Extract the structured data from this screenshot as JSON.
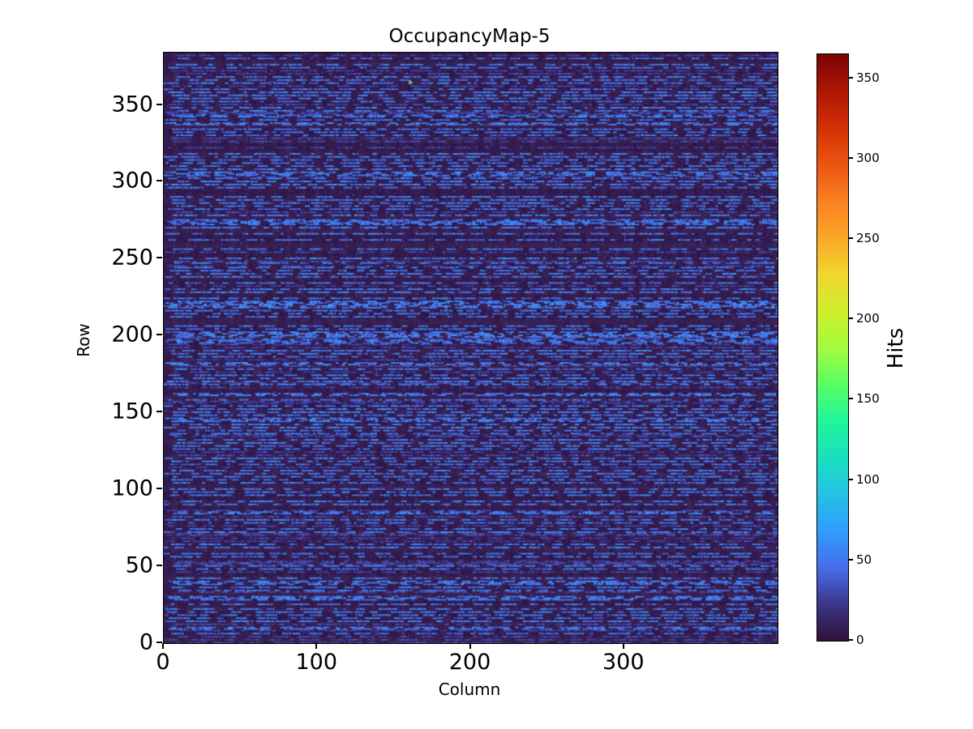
{
  "figure": {
    "background_color": "#ffffff",
    "text_color": "#000000"
  },
  "chart_data": {
    "type": "heatmap",
    "title": "OccupancyMap-5",
    "xlabel": "Column",
    "ylabel": "Row",
    "colorbar_label": "Hits",
    "x_range": [
      0,
      400
    ],
    "y_range": [
      0,
      384
    ],
    "value_range": [
      0,
      365
    ],
    "x_ticks": [
      0,
      100,
      200,
      300
    ],
    "y_ticks": [
      0,
      50,
      100,
      150,
      200,
      250,
      300,
      350
    ],
    "colorbar_ticks": [
      0,
      50,
      100,
      150,
      200,
      250,
      300,
      350
    ],
    "grid": false,
    "legend": null,
    "colormap": {
      "name": "turbo",
      "stops": [
        {
          "t": 0.0,
          "rgb": [
            48,
            18,
            59
          ]
        },
        {
          "t": 0.0625,
          "rgb": [
            60,
            54,
            138
          ]
        },
        {
          "t": 0.125,
          "rgb": [
            70,
            110,
            235
          ]
        },
        {
          "t": 0.1875,
          "rgb": [
            46,
            158,
            253
          ]
        },
        {
          "t": 0.25,
          "rgb": [
            35,
            194,
            228
          ]
        },
        {
          "t": 0.3125,
          "rgb": [
            26,
            224,
            190
          ]
        },
        {
          "t": 0.375,
          "rgb": [
            32,
            246,
            154
          ]
        },
        {
          "t": 0.4375,
          "rgb": [
            89,
            255,
            100
          ]
        },
        {
          "t": 0.5,
          "rgb": [
            164,
            252,
            60
          ]
        },
        {
          "t": 0.5625,
          "rgb": [
            207,
            238,
            44
          ]
        },
        {
          "t": 0.625,
          "rgb": [
            242,
            213,
            47
          ]
        },
        {
          "t": 0.6875,
          "rgb": [
            250,
            167,
            38
          ]
        },
        {
          "t": 0.75,
          "rgb": [
            251,
            128,
            34
          ]
        },
        {
          "t": 0.8125,
          "rgb": [
            236,
            84,
            16
          ]
        },
        {
          "t": 0.875,
          "rgb": [
            210,
            48,
            5
          ]
        },
        {
          "t": 0.9375,
          "rgb": [
            172,
            22,
            4
          ]
        },
        {
          "t": 1.0,
          "rgb": [
            122,
            4,
            3
          ]
        }
      ]
    },
    "pattern": {
      "description": "Dense 400x384 pixel-detector occupancy map: near-zero background (dark purple) with horizontal dashed streaks of ~25-75 hits on roughly alternating rows; single hot cluster near (column 160, row 365) reaching the ~365-hit maximum.",
      "seed": 1337,
      "n_cols": 400,
      "n_rows": 384,
      "background_hits_range": [
        1,
        10
      ],
      "streak_hits_mean": 48,
      "streak_hits_sigma": 13,
      "streak_hits_clamp": [
        16,
        88
      ],
      "streak_row_probability_even": 0.85,
      "streak_row_probability_odd": 0.18,
      "faint_row_factor": 0.55,
      "faint_row_probability": 0.25,
      "dash_length_range": [
        2,
        15
      ],
      "gap_length_range": [
        1,
        9
      ],
      "dark_row_speckle_probability": 0.025,
      "dark_row_speckle_hits_range": [
        14,
        30
      ],
      "hotspot": {
        "column": 160,
        "row": 365,
        "max_hits": 365,
        "cells": [
          [
            160,
            365,
            230
          ],
          [
            161,
            365,
            365
          ],
          [
            160,
            364,
            150
          ],
          [
            161,
            364,
            80
          ]
        ]
      }
    }
  }
}
